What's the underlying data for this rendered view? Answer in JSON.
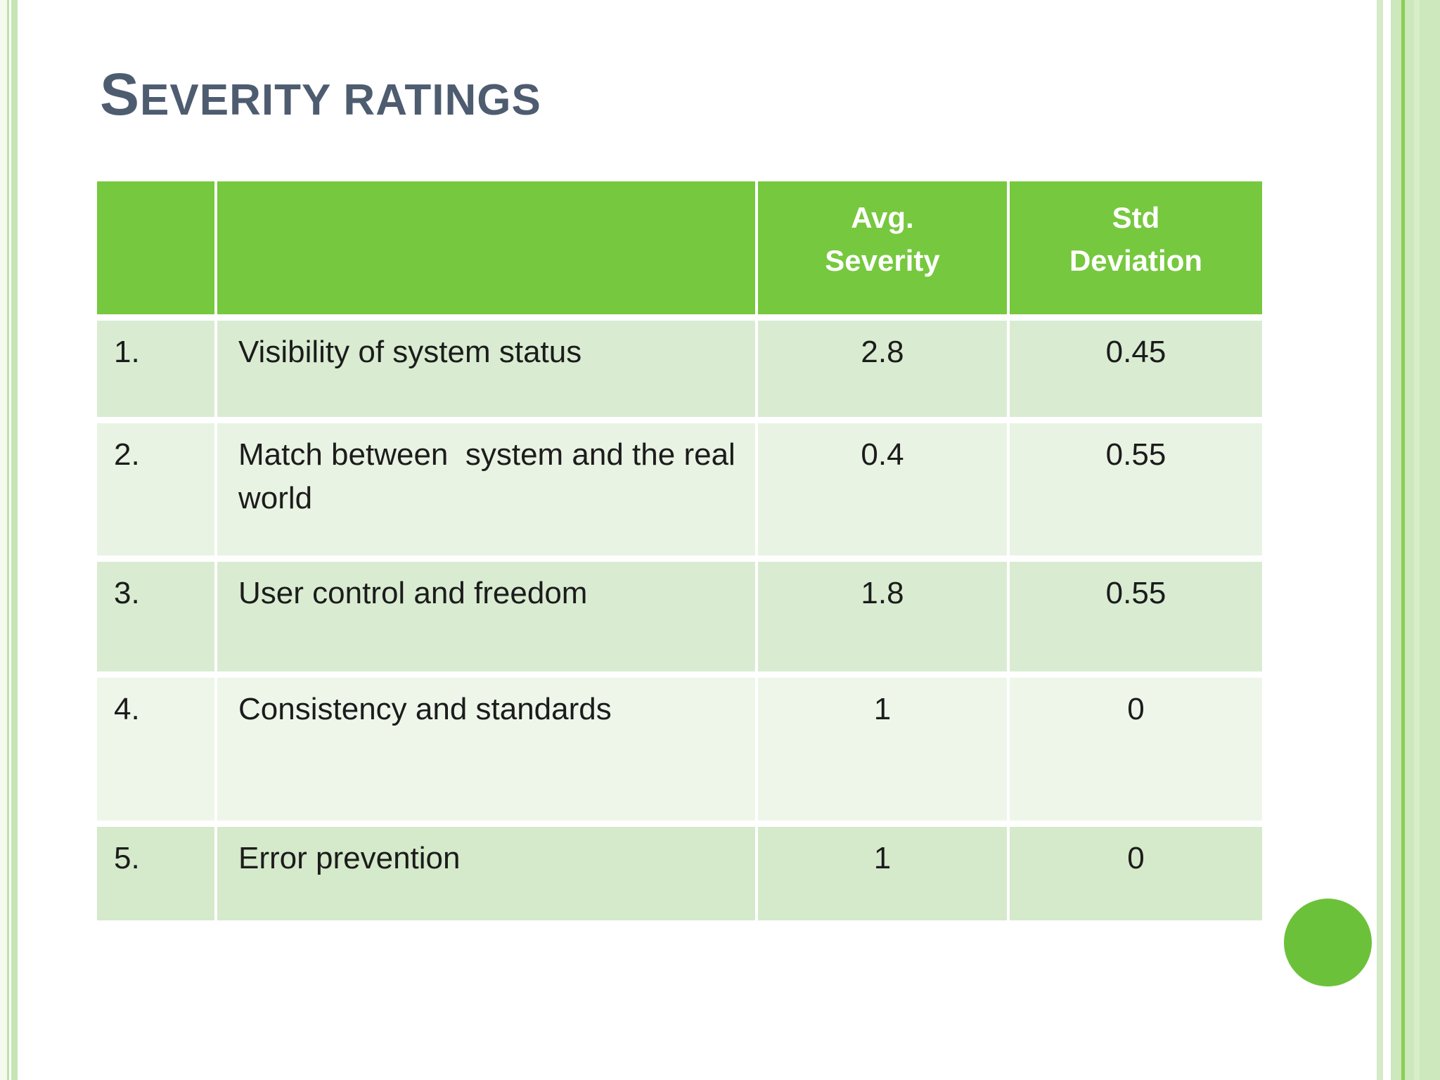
{
  "slide": {
    "title": "Severity ratings"
  },
  "table": {
    "headers": [
      "",
      "",
      "Avg.\nSeverity",
      "Std\nDeviation"
    ],
    "rows": [
      {
        "num": "1.",
        "name": "Visibility of system status",
        "avg": "2.8",
        "std": "0.45"
      },
      {
        "num": "2.",
        "name": "Match between  system and the real world",
        "avg": "0.4",
        "std": "0.55"
      },
      {
        "num": "3.",
        "name": "User control and freedom",
        "avg": "1.8",
        "std": "0.55"
      },
      {
        "num": "4.",
        "name": "Consistency and standards",
        "avg": "1",
        "std": "0"
      },
      {
        "num": "5.",
        "name": "Error prevention",
        "avg": "1",
        "std": "0"
      }
    ]
  },
  "theme": {
    "header_green": "#76c83e",
    "circle_green": "#6cc13a",
    "title_color": "#4e5c70",
    "edge_band_green": "#c6e5b4",
    "edge_accent_green": "#8bce55",
    "row_colors": [
      "#d9ecd2",
      "#e9f3e3",
      "#d9ecd2",
      "#eef6ea",
      "#d5e9cb"
    ]
  }
}
